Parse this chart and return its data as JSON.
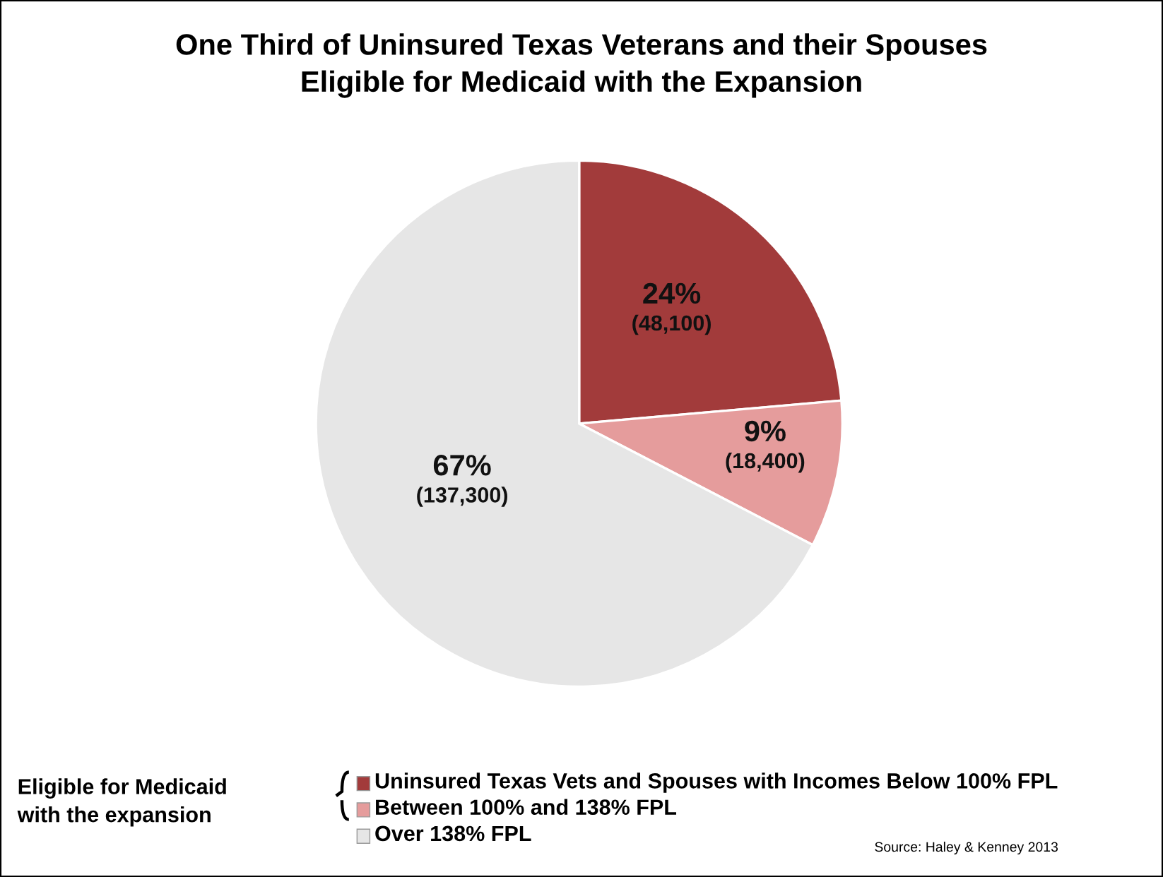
{
  "chart_data": {
    "type": "pie",
    "title": "One Third of Uninsured Texas Veterans and their Spouses\nEligible for Medicaid with the Expansion",
    "categories": [
      "Uninsured Texas Vets and Spouses with Incomes Below 100% FPL",
      "Between 100% and 138% FPL",
      "Over 138% FPL"
    ],
    "values": [
      48100,
      18400,
      137300
    ],
    "value_labels": [
      "24%\n(48,100)",
      "9%\n(18,400)",
      "67%\n(137,300)"
    ],
    "colors": [
      "#a23b3b",
      "#e59c9c",
      "#e6e6e6"
    ],
    "legend": "bottom",
    "legend_title": "Eligible for Medicaid\nwith the expansion",
    "annotations": [
      "Source: Haley & Kenney 2013"
    ]
  }
}
